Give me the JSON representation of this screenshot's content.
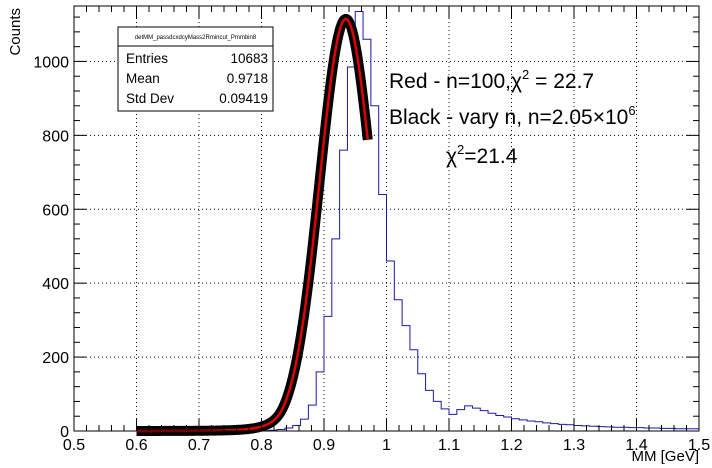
{
  "chart_data": {
    "type": "histogram",
    "xlabel": "MM [GeV]",
    "ylabel": "Counts",
    "xlim": [
      0.5,
      1.5
    ],
    "ylim": [
      0,
      1150
    ],
    "grid": true,
    "x_ticks": [
      "0.5",
      "0.6",
      "0.7",
      "0.8",
      "0.9",
      "1",
      "1.1",
      "1.2",
      "1.3",
      "1.4",
      "1.5"
    ],
    "y_ticks": [
      "0",
      "200",
      "400",
      "600",
      "800",
      "1000"
    ],
    "x_tick_values": [
      0.5,
      0.6,
      0.7,
      0.8,
      0.9,
      1.0,
      1.1,
      1.2,
      1.3,
      1.4,
      1.5
    ],
    "y_tick_values": [
      0,
      200,
      400,
      600,
      800,
      1000
    ],
    "histogram": {
      "bin_edges_start": 0.5,
      "bin_width": 0.0125,
      "counts": [
        0,
        0,
        0,
        0,
        0,
        0,
        0,
        0,
        0,
        0,
        0,
        0,
        0,
        0,
        0,
        0,
        0,
        0,
        0,
        0,
        0,
        0,
        0,
        0,
        1,
        2,
        4,
        8,
        15,
        32,
        70,
        160,
        310,
        520,
        760,
        985,
        1135,
        1060,
        880,
        640,
        460,
        355,
        285,
        220,
        155,
        110,
        80,
        60,
        45,
        58,
        68,
        62,
        55,
        48,
        42,
        38,
        33,
        30,
        27,
        25,
        22,
        20,
        18,
        17,
        15,
        14,
        13,
        12,
        11,
        10,
        10,
        9,
        9,
        8,
        8,
        7,
        7,
        6,
        6,
        6
      ]
    },
    "fits": [
      {
        "color": "#000000",
        "x_range": [
          0.6,
          0.97
        ],
        "mu": 0.935,
        "sigma": 0.042,
        "alpha": 2.4,
        "amplitude": 1115
      },
      {
        "color": "#e00000",
        "x_range": [
          0.6,
          0.97
        ],
        "mu": 0.935,
        "sigma": 0.042,
        "alpha": 2.4,
        "amplitude": 1115
      }
    ],
    "stats_box": {
      "name": "detMM_passdcxdcyMass2Rmincut_Pmmbin8",
      "rows": [
        {
          "label": "Entries",
          "value": "10683"
        },
        {
          "label": "Mean",
          "value": "0.9718"
        },
        {
          "label": "Std Dev",
          "value": "0.09419"
        }
      ]
    },
    "annotations": {
      "line1_pre": "Red - n=100,",
      "line1_chi": "χ",
      "line1_sup": "2",
      "line1_post": " = 22.7",
      "line2_pre": "Black - vary n, n=2.05",
      "line2_times": "×10",
      "line2_sup": "6",
      "line3_chi": "χ",
      "line3_sup": "2",
      "line3_post": "=21.4"
    },
    "colors": {
      "histogram": "#1a1aa6",
      "fit_outer": "#000000",
      "fit_inner": "#e00000"
    }
  }
}
